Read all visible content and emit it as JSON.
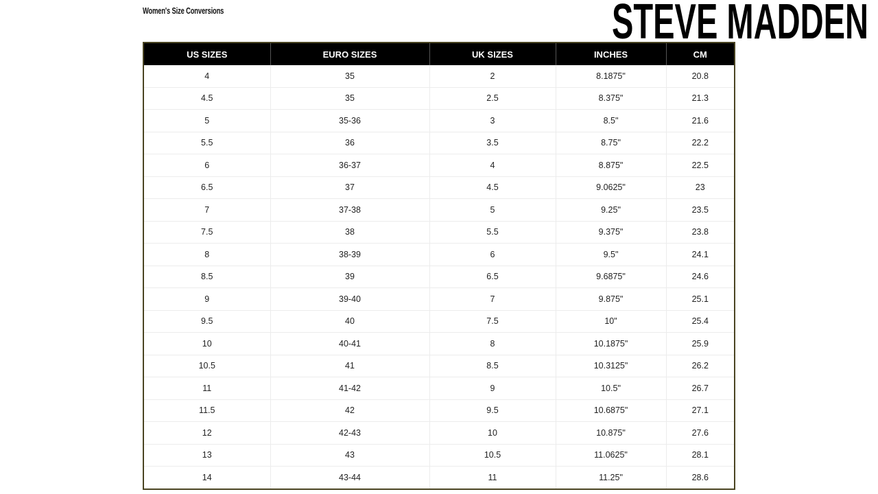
{
  "title": "Women's Size Conversions",
  "brand": "STEVE MADDEN",
  "table": {
    "headers": [
      "US SIZES",
      "EURO SIZES",
      "UK SIZES",
      "INCHES",
      "CM"
    ],
    "rows": [
      [
        "4",
        "35",
        "2",
        "8.1875\"",
        "20.8"
      ],
      [
        "4.5",
        "35",
        "2.5",
        "8.375\"",
        "21.3"
      ],
      [
        "5",
        "35-36",
        "3",
        "8.5\"",
        "21.6"
      ],
      [
        "5.5",
        "36",
        "3.5",
        "8.75\"",
        "22.2"
      ],
      [
        "6",
        "36-37",
        "4",
        "8.875\"",
        "22.5"
      ],
      [
        "6.5",
        "37",
        "4.5",
        "9.0625\"",
        "23"
      ],
      [
        "7",
        "37-38",
        "5",
        "9.25\"",
        "23.5"
      ],
      [
        "7.5",
        "38",
        "5.5",
        "9.375\"",
        "23.8"
      ],
      [
        "8",
        "38-39",
        "6",
        "9.5\"",
        "24.1"
      ],
      [
        "8.5",
        "39",
        "6.5",
        "9.6875\"",
        "24.6"
      ],
      [
        "9",
        "39-40",
        "7",
        "9.875\"",
        "25.1"
      ],
      [
        "9.5",
        "40",
        "7.5",
        "10\"",
        "25.4"
      ],
      [
        "10",
        "40-41",
        "8",
        "10.1875\"",
        "25.9"
      ],
      [
        "10.5",
        "41",
        "8.5",
        "10.3125\"",
        "26.2"
      ],
      [
        "11",
        "41-42",
        "9",
        "10.5\"",
        "26.7"
      ],
      [
        "11.5",
        "42",
        "9.5",
        "10.6875\"",
        "27.1"
      ],
      [
        "12",
        "42-43",
        "10",
        "10.875\"",
        "27.6"
      ],
      [
        "13",
        "43",
        "10.5",
        "11.0625\"",
        "28.1"
      ],
      [
        "14",
        "43-44",
        "11",
        "11.25\"",
        "28.6"
      ]
    ]
  },
  "colors": {
    "header_bg": "#000000",
    "border": "#4a4422"
  }
}
